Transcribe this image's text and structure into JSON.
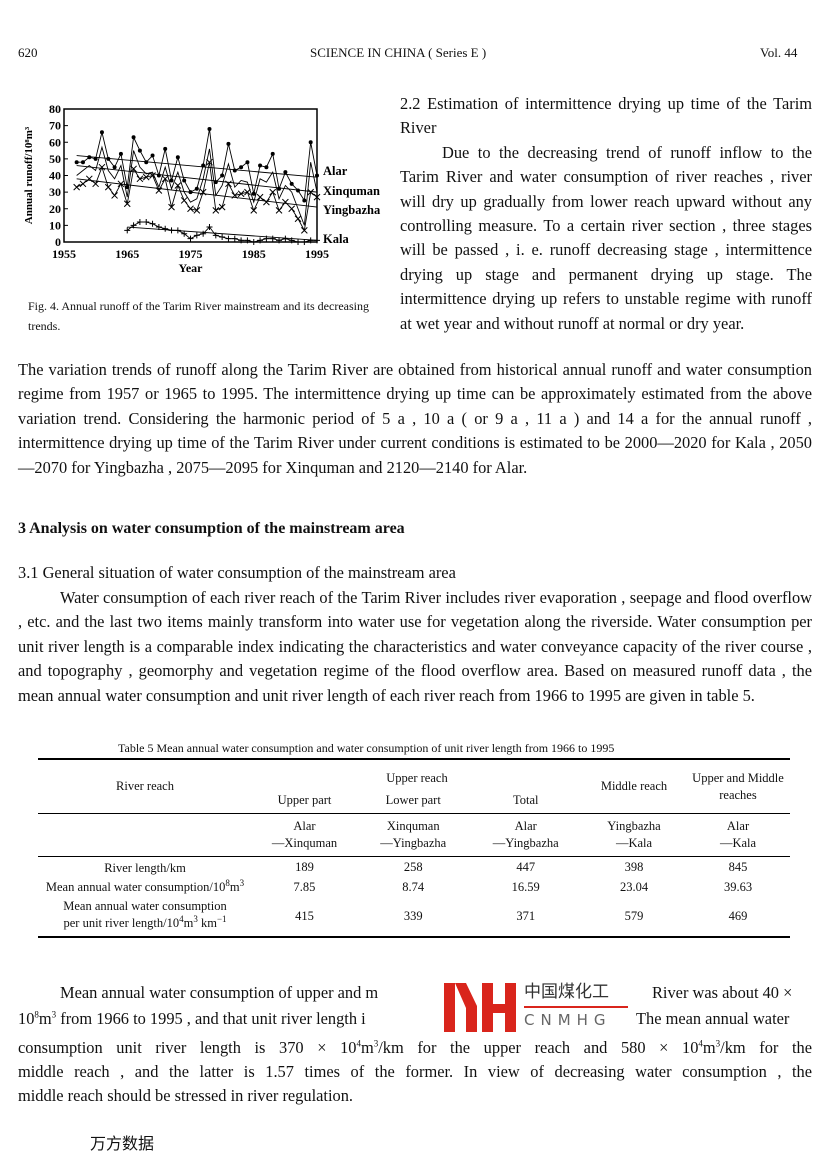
{
  "header": {
    "page": "620",
    "journal": "SCIENCE IN CHINA ( Series E )",
    "volume": "Vol. 44"
  },
  "figure": {
    "caption": "Fig. 4.   Annual runoff of the Tarim River mainstream and its decreasing trends.",
    "chart_data": {
      "type": "line",
      "xlabel": "Year",
      "ylabel": "Annual runoff/10⁸m³",
      "xlim": [
        1955,
        1995
      ],
      "ylim": [
        0,
        80
      ],
      "xticks": [
        1955,
        1965,
        1975,
        1985,
        1995
      ],
      "yticks": [
        0,
        10,
        20,
        30,
        40,
        50,
        60,
        70,
        80
      ],
      "series": [
        {
          "name": "Alar",
          "start_year": 1957,
          "values": [
            48,
            48,
            51,
            50,
            66,
            50,
            45,
            53,
            33,
            63,
            55,
            48,
            52,
            40,
            56,
            37,
            51,
            37,
            30,
            32,
            46,
            68,
            36,
            40,
            59,
            43,
            45,
            48,
            29,
            46,
            45,
            53,
            32,
            42,
            35,
            31,
            25,
            60,
            40
          ],
          "trend": [
            52,
            39
          ],
          "marker": "dot"
        },
        {
          "name": "Xinquman",
          "start_year": 1957,
          "values": [
            40,
            43,
            46,
            43,
            57,
            43,
            38,
            46,
            27,
            55,
            45,
            41,
            42,
            33,
            45,
            32,
            42,
            30,
            24,
            26,
            38,
            56,
            28,
            34,
            47,
            33,
            37,
            36,
            24,
            38,
            36,
            42,
            26,
            34,
            30,
            20,
            10,
            48,
            30
          ],
          "trend": [
            46,
            30
          ],
          "marker": "none"
        },
        {
          "name": "Yingbazha",
          "start_year": 1957,
          "values": [
            33,
            35,
            38,
            35,
            45,
            33,
            28,
            35,
            23,
            44,
            38,
            39,
            40,
            31,
            38,
            21,
            34,
            25,
            20,
            19,
            30,
            48,
            19,
            21,
            35,
            28,
            29,
            30,
            19,
            27,
            24,
            30,
            19,
            24,
            20,
            14,
            7,
            30,
            27
          ],
          "trend": [
            38,
            21
          ],
          "marker": "x"
        },
        {
          "name": "Kala",
          "start_year": 1965,
          "values": [
            7,
            10,
            12,
            12,
            11,
            9,
            8,
            7,
            7,
            5,
            2,
            4,
            5,
            9,
            4,
            3,
            2,
            2,
            1,
            1,
            0,
            1,
            2,
            2,
            1,
            2,
            1,
            0,
            0,
            1,
            1
          ],
          "trend": [
            9,
            1
          ],
          "marker": "plus"
        }
      ]
    }
  },
  "right_col": {
    "heading": "2.2   Estimation of intermittence drying up time of the Tarim River",
    "para": "Due to the decreasing trend of runoff inflow to the Tarim River and water consumption of river reaches , river will dry up gradually from lower reach upward without any controlling measure. To a certain river section , three stages will be passed , i. e. runoff decreasing stage , intermittence drying up stage and permanent drying up stage. The intermittence drying up refers to unstable regime with runoff at wet year and without runoff at normal or dry year."
  },
  "para_trends": "The variation trends of runoff along the Tarim River are obtained from historical annual runoff and water consumption regime from 1957 or 1965 to 1995. The intermittence drying up time can be approximately estimated from the above variation trend. Considering the harmonic period of 5 a , 10 a ( or 9 a , 11 a ) and 14 a for the annual runoff , intermittence drying up time of the Tarim River under current conditions is estimated to be 2000—2020 for Kala , 2050—2070 for Yingbazha , 2075—2095 for Xinquman and 2120—2140 for Alar.",
  "section3": "3   Analysis on water consumption of the mainstream area",
  "sub31": "3.1   General situation of water consumption of the mainstream area",
  "para31": "Water consumption of each river reach of the Tarim River includes river evaporation , seepage and flood overflow , etc. and the last two items mainly transform into water use for vegetation along the riverside. Water consumption per unit river length is a comparable index indicating the characteristics and water conveyance capacity of the river course , and topography , geomorphy and vegetation regime of the flood overflow area. Based on measured runoff data , the mean annual water consumption and unit river length of each river reach from 1966 to 1995 are given in table 5.",
  "table": {
    "caption": "Table 5   Mean annual water consumption and water consumption of unit river length from 1966 to 1995",
    "h_river_reach": "River reach",
    "h_upper": "Upper reach",
    "h_upper_part": "Upper part",
    "h_lower_part": "Lower part",
    "h_total": "Total",
    "h_middle": "Middle reach",
    "h_upper_middle": "Upper and Middle reaches",
    "sections": [
      [
        "Alar",
        "—Xinquman"
      ],
      [
        "Xinquman",
        "—Yingbazha"
      ],
      [
        "Alar",
        "—Yingbazha"
      ],
      [
        "Yingbazha",
        "—Kala"
      ],
      [
        "Alar",
        "—Kala"
      ]
    ],
    "r1_label": "River length/km",
    "r1": [
      "189",
      "258",
      "447",
      "398",
      "845"
    ],
    "r2_label": "Mean annual water consumption/10",
    "r2_sup1": "8",
    "r2_m": "m",
    "r2_sup2": "3",
    "r2": [
      "7.85",
      "8.74",
      "16.59",
      "23.04",
      "39.63"
    ],
    "r3_label1": "Mean annual water consumption",
    "r3_label2": "per unit river length/10",
    "r3_sup1": "4",
    "r3_m": "m",
    "r3_sup2": "3",
    "r3_km": "  km",
    "r3_sup3": "−1",
    "r3": [
      "415",
      "339",
      "371",
      "579",
      "469"
    ]
  },
  "last_para": {
    "l1a": "Mean annual water consumption of upper and m",
    "l1b": "River was about 40 ×",
    "l2a": "10",
    "l2s1": "8",
    "l2b": "m",
    "l2s2": "3",
    "l2c": " from 1966 to 1995 , and that unit river length i",
    "l2d": "The mean annual water",
    "l3a": "consumption unit river length is 370 × 10",
    "l3s1": "4",
    "l3b": "m",
    "l3s2": "3",
    "l3c": "/km for the upper reach and 580 × 10",
    "l3s3": "4",
    "l3d": "m",
    "l3s4": "3",
    "l3e": "/km for the",
    "l4": "middle reach , and the latter is 1.57 times of the former. In view of decreasing water consumption , the",
    "l5": "middle reach should be stressed in river regulation."
  },
  "watermark": {
    "cn": "中国煤化工",
    "en": "CNMHG",
    "color": "#d9251c"
  },
  "footer_mark": "万方数据"
}
